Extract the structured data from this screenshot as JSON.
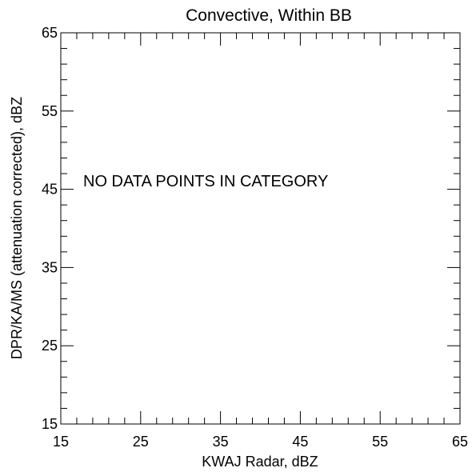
{
  "chart_data": {
    "type": "scatter",
    "title": "Convective, Within BB",
    "xlabel": "KWAJ Radar, dBZ",
    "ylabel": "DPR/KA/MS (attenuation corrected), dBZ",
    "xlim": [
      15,
      65
    ],
    "ylim": [
      15,
      65
    ],
    "x_major_ticks": [
      15,
      25,
      35,
      45,
      55,
      65
    ],
    "y_major_ticks": [
      15,
      25,
      35,
      45,
      55,
      65
    ],
    "x_tick_labels": [
      "15",
      "25",
      "35",
      "45",
      "55",
      "65"
    ],
    "y_tick_labels": [
      "15",
      "25",
      "35",
      "45",
      "55",
      "65"
    ],
    "minor_tick_step": 2,
    "grid": false,
    "legend": "none",
    "points": [],
    "annotation": "NO DATA POINTS IN CATEGORY"
  },
  "colors": {
    "axes": "#000000",
    "background": "#ffffff"
  }
}
